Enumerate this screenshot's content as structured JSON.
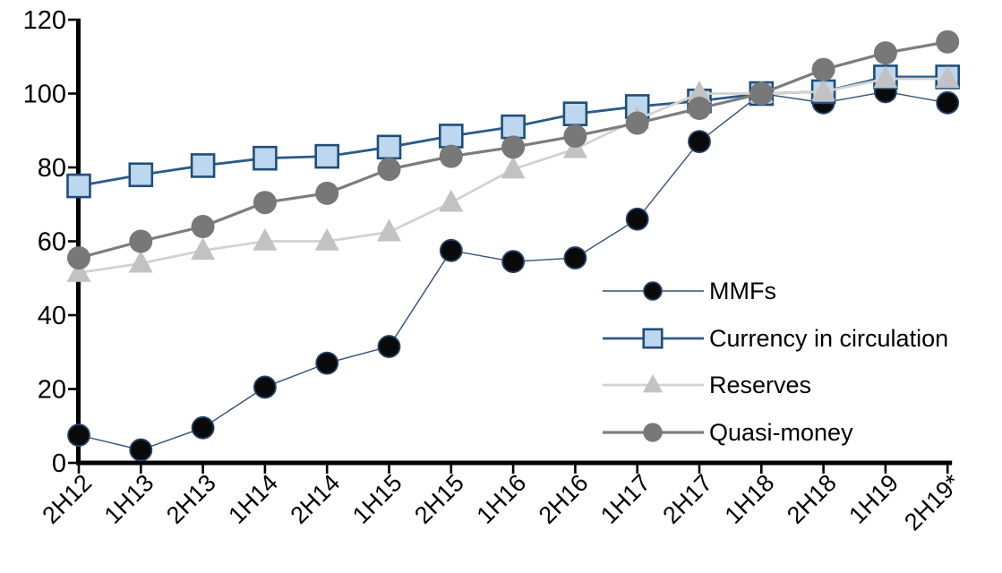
{
  "chart_data": {
    "type": "line",
    "title": "",
    "xlabel": "",
    "ylabel": "",
    "categories": [
      "2H12",
      "1H13",
      "2H13",
      "1H14",
      "2H14",
      "1H15",
      "2H15",
      "1H16",
      "2H16",
      "1H17",
      "2H17",
      "1H18",
      "2H18",
      "1H19",
      "2H19*"
    ],
    "series": [
      {
        "name": "MMFs",
        "marker": "circle",
        "marker_fill": "#0a0a0a",
        "marker_stroke": "#24426b",
        "line_color": "#33507a",
        "line_width": 1.4,
        "marker_size": 24,
        "values": [
          7.5,
          3.5,
          9.5,
          20.5,
          27,
          31.5,
          57.5,
          54.5,
          55.5,
          66,
          87,
          100,
          97.5,
          100.5,
          97.5
        ]
      },
      {
        "name": "Currency in circulation",
        "marker": "square",
        "marker_fill": "#bdd7ee",
        "marker_stroke": "#1f4e79",
        "line_color": "#2a5c8a",
        "line_width": 2.8,
        "marker_size": 25,
        "values": [
          75,
          78,
          80.5,
          82.5,
          83,
          85.5,
          88.5,
          91,
          94.5,
          96.5,
          98,
          100,
          100.5,
          104.5,
          104.5
        ]
      },
      {
        "name": "Reserves",
        "marker": "triangle",
        "marker_fill": "#c2c2c2",
        "marker_stroke": "none",
        "line_color": "#d2d2d2",
        "line_width": 2.8,
        "marker_size": 27,
        "values": [
          51.5,
          54,
          57.5,
          60,
          60,
          62.5,
          70.5,
          79.5,
          85,
          93,
          100,
          100,
          100.5,
          104,
          104
        ]
      },
      {
        "name": "Quasi-money",
        "marker": "circle",
        "marker_fill": "#787878",
        "marker_stroke": "none",
        "line_color": "#7d7d7d",
        "line_width": 3.2,
        "marker_size": 26,
        "values": [
          55.5,
          60,
          64,
          70.5,
          73,
          79.5,
          83,
          85.5,
          88.5,
          92,
          96,
          100,
          106.5,
          111,
          114
        ]
      }
    ],
    "yticks": [
      0,
      20,
      40,
      60,
      80,
      100,
      120
    ],
    "ylim": [
      0,
      120
    ],
    "grid": false,
    "legend_position": "center-right",
    "axis_color": "#000000",
    "text_color": "#000000"
  }
}
